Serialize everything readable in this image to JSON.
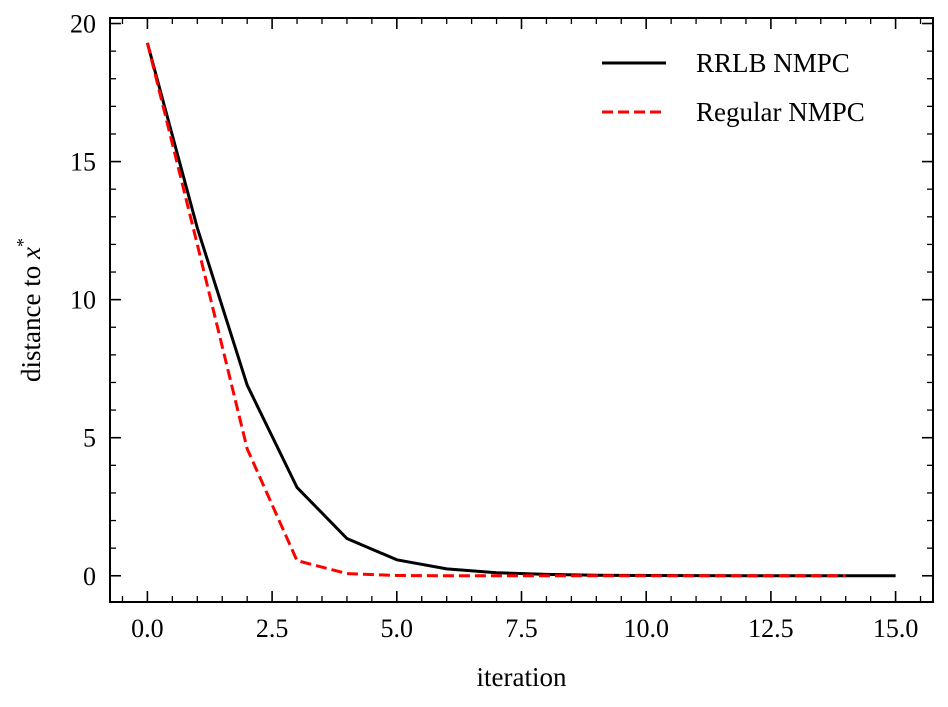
{
  "chart_data": {
    "type": "line",
    "xlabel": "iteration",
    "ylabel": "distance to ",
    "ylabel_var": "x",
    "ylabel_sup": "*",
    "xlim": [
      -0.75,
      15.75
    ],
    "ylim": [
      -0.95,
      20.2
    ],
    "xticks": [
      0.0,
      2.5,
      5.0,
      7.5,
      10.0,
      12.5,
      15.0
    ],
    "xtick_labels": [
      "0.0",
      "2.5",
      "5.0",
      "7.5",
      "10.0",
      "12.5",
      "15.0"
    ],
    "yticks": [
      0,
      5,
      10,
      15,
      20
    ],
    "ytick_labels": [
      "0",
      "5",
      "10",
      "15",
      "20"
    ],
    "grid": false,
    "legend_position": "top-right",
    "series": [
      {
        "name": "RRLB NMPC",
        "color": "#000000",
        "style": "solid",
        "x": [
          0,
          1,
          2,
          3,
          4,
          5,
          6,
          7,
          8,
          9,
          10,
          11,
          12,
          13,
          14,
          15
        ],
        "y": [
          19.3,
          12.6,
          6.9,
          3.2,
          1.35,
          0.58,
          0.25,
          0.11,
          0.05,
          0.02,
          0.01,
          0.005,
          0.002,
          0.001,
          0.0,
          0.0
        ]
      },
      {
        "name": "Regular NMPC",
        "color": "#ff0000",
        "style": "dashed",
        "x": [
          0,
          1,
          2,
          3,
          4,
          5,
          6,
          7,
          8,
          9,
          10,
          11,
          12,
          13,
          14
        ],
        "y": [
          19.3,
          12.0,
          4.6,
          0.55,
          0.08,
          0.01,
          0.0,
          0.0,
          0.0,
          0.0,
          0.0,
          0.0,
          0.0,
          0.0,
          0.0
        ]
      }
    ]
  }
}
